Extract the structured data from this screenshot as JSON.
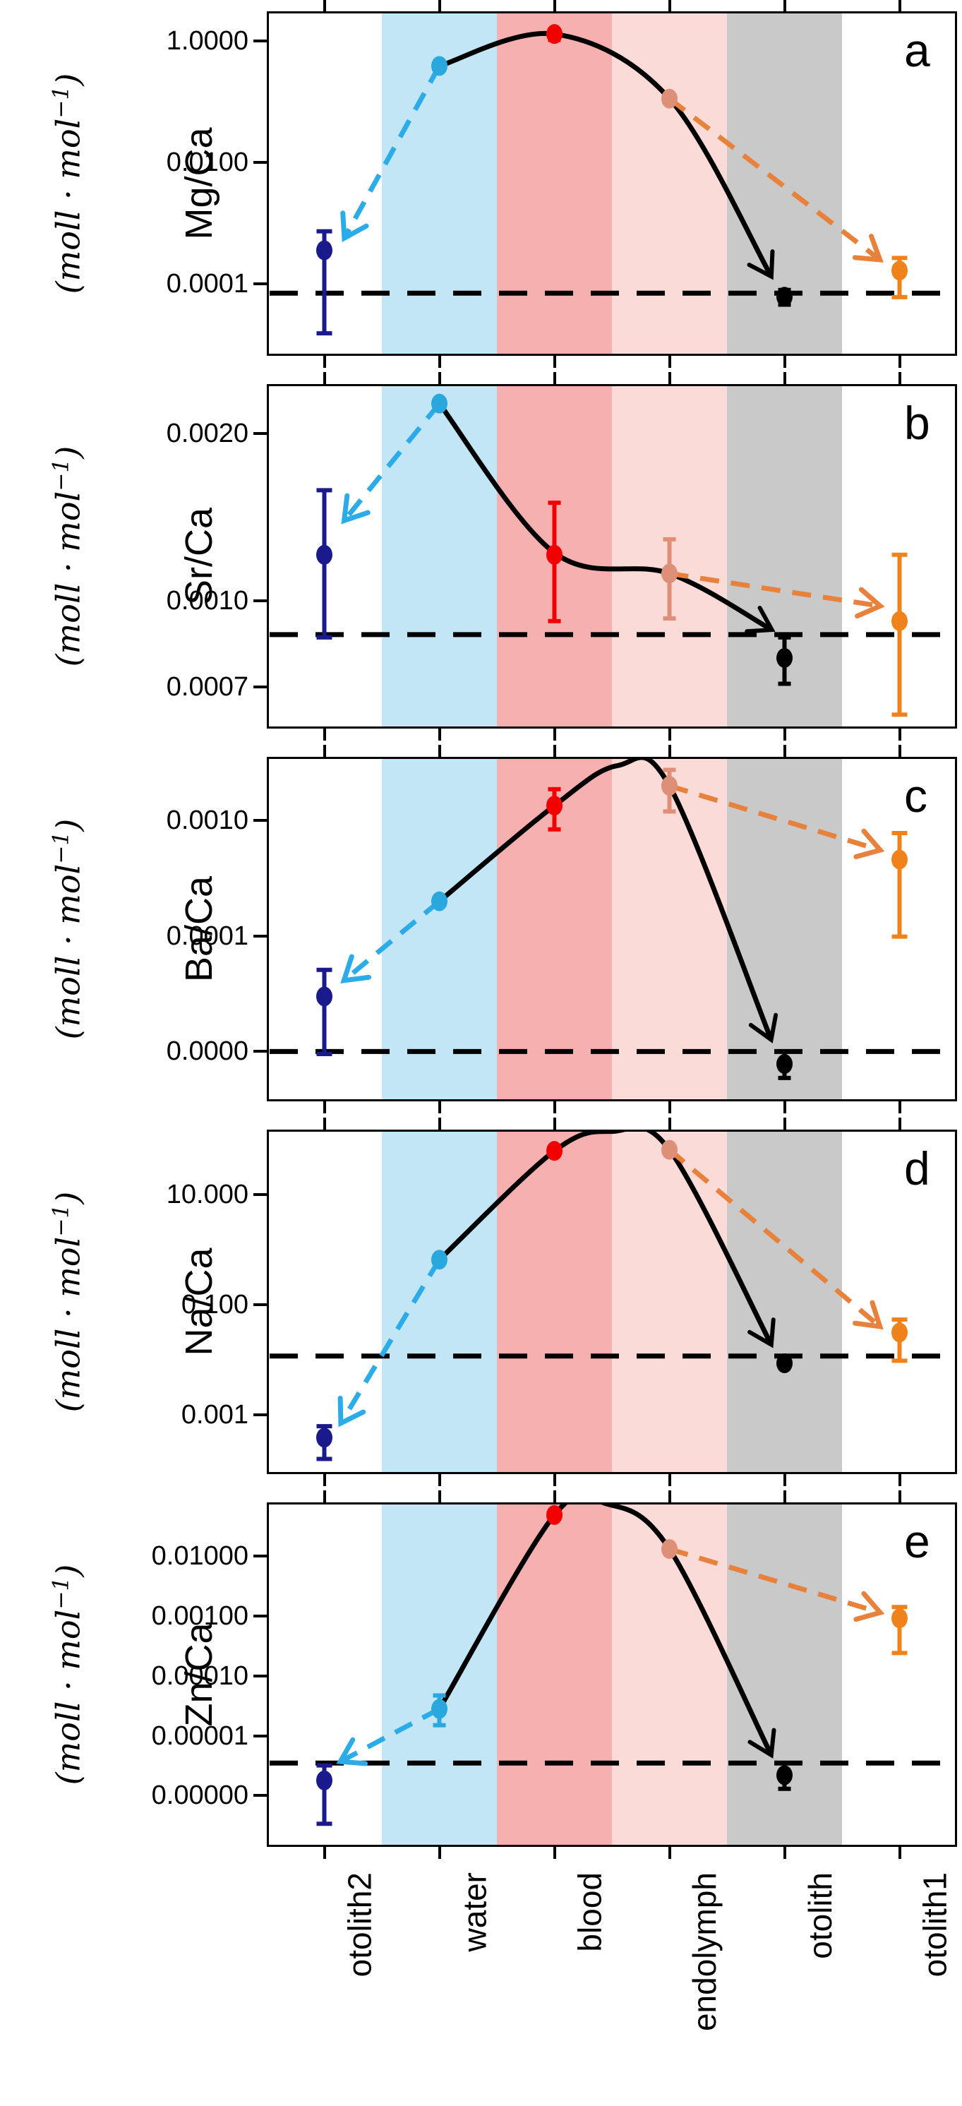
{
  "figure": {
    "units_main": "(moll · mol",
    "units_sup": "−1",
    "units_close": ")"
  },
  "x_categories": [
    "otolith2",
    "water",
    "blood",
    "endolymph",
    "otolith",
    "otolith1"
  ],
  "colors": {
    "band_water": "#c3e6f7",
    "band_blood": "#f7b0b0",
    "band_endolymph": "#fbdbd8",
    "band_otolith": "#c9c9c9",
    "point_otolith2": "#1a1a8c",
    "point_water": "#2aa7dd",
    "point_blood": "#f20000",
    "point_endolymph": "#dd8f77",
    "point_otolith": "#000000",
    "point_otolith1": "#f0821c",
    "arrow_water": "#2bace8",
    "arrow_endolymph": "#e8813c",
    "curve": "#000000",
    "dashed_line": "#000000",
    "axis": "#000000"
  },
  "chart_data": [
    {
      "type": "scatter",
      "panel_label": "a",
      "ylabel": "Mg/Ca",
      "yscale": "log",
      "ytop": 3.1,
      "ybottom": 6.6e-06,
      "yticks": [
        {
          "value": 1.0,
          "label": "1.0000"
        },
        {
          "value": 0.01,
          "label": "0.0100"
        },
        {
          "value": 0.0001,
          "label": "0.0001"
        }
      ],
      "dashed_reference": 7.1e-05,
      "points": [
        {
          "cat": "otolith2",
          "value": 0.00036,
          "lo": 1.55e-05,
          "hi": 0.00074
        },
        {
          "cat": "water",
          "value": 0.39,
          "lo": null,
          "hi": null
        },
        {
          "cat": "blood",
          "value": 1.31,
          "lo": 1.05,
          "hi": 1.5
        },
        {
          "cat": "endolymph",
          "value": 0.113,
          "lo": null,
          "hi": null
        },
        {
          "cat": "otolith",
          "value": 6.2e-05,
          "lo": 4.6e-05,
          "hi": 8e-05
        },
        {
          "cat": "otolith1",
          "value": 0.000167,
          "lo": 6.1e-05,
          "hi": 0.00027
        }
      ],
      "curve": [
        [
          1,
          0.39
        ],
        [
          2,
          1.31
        ],
        [
          3,
          0.113
        ],
        [
          3.88,
          0.00014
        ]
      ],
      "arrow_cyan": {
        "from": [
          1,
          0.39
        ],
        "to": [
          0.18,
          0.0006
        ]
      },
      "arrow_orange": {
        "from": [
          3,
          0.113
        ],
        "to": [
          4.82,
          0.00026
        ]
      }
    },
    {
      "type": "scatter",
      "panel_label": "b",
      "ylabel": "Sr/Ca",
      "yscale": "log",
      "ytop": 0.00245,
      "ybottom": 0.00059,
      "yticks": [
        {
          "value": 0.002,
          "label": "0.0020"
        },
        {
          "value": 0.001,
          "label": "0.0010"
        },
        {
          "value": 0.0007,
          "label": "0.0007"
        }
      ],
      "dashed_reference": 0.00087,
      "points": [
        {
          "cat": "otolith2",
          "value": 0.00121,
          "lo": 0.00086,
          "hi": 0.00158
        },
        {
          "cat": "water",
          "value": 0.00226,
          "lo": null,
          "hi": null
        },
        {
          "cat": "blood",
          "value": 0.00121,
          "lo": 0.00092,
          "hi": 0.0015
        },
        {
          "cat": "endolymph",
          "value": 0.00112,
          "lo": 0.00093,
          "hi": 0.00129
        },
        {
          "cat": "otolith",
          "value": 0.00079,
          "lo": 0.00071,
          "hi": 0.00086
        },
        {
          "cat": "otolith1",
          "value": 0.00092,
          "lo": 0.000625,
          "hi": 0.00121
        }
      ],
      "curve": [
        [
          1,
          0.00226
        ],
        [
          2,
          0.00122
        ],
        [
          3,
          0.00112
        ],
        [
          3.88,
          0.00089
        ]
      ],
      "arrow_cyan": {
        "from": [
          1,
          0.00226
        ],
        "to": [
          0.18,
          0.0014
        ]
      },
      "arrow_orange": {
        "from": [
          3,
          0.00112
        ],
        "to": [
          4.82,
          0.00098
        ]
      }
    },
    {
      "type": "scatter",
      "panel_label": "c",
      "ylabel": "Ba/Ca",
      "yscale": "log",
      "ytop": 0.00357,
      "ybottom": 3.7e-06,
      "yticks": [
        {
          "value": 0.001,
          "label": "0.0010"
        },
        {
          "value": 0.0001,
          "label": "0.0001"
        },
        {
          "value": 1e-05,
          "label": "0.0000"
        }
      ],
      "dashed_reference": 1e-05,
      "points": [
        {
          "cat": "otolith2",
          "value": 3e-05,
          "lo": 9.5e-06,
          "hi": 5.1e-05
        },
        {
          "cat": "water",
          "value": 0.0002,
          "lo": null,
          "hi": null
        },
        {
          "cat": "blood",
          "value": 0.00135,
          "lo": 0.00084,
          "hi": 0.00187
        },
        {
          "cat": "endolymph",
          "value": 0.002,
          "lo": 0.0012,
          "hi": 0.00275
        },
        {
          "cat": "otolith",
          "value": 7.8e-06,
          "lo": 5.9e-06,
          "hi": 1e-05
        },
        {
          "cat": "otolith1",
          "value": 0.00046,
          "lo": 9.9e-05,
          "hi": 0.00078
        }
      ],
      "curve": [
        [
          1,
          0.0002
        ],
        [
          2,
          0.00135
        ],
        [
          2.55,
          0.003
        ],
        [
          3,
          0.002
        ],
        [
          3.88,
          1.3e-05
        ]
      ],
      "arrow_cyan": {
        "from": [
          1,
          0.0002
        ],
        "to": [
          0.18,
          4.2e-05
        ]
      },
      "arrow_orange": {
        "from": [
          3,
          0.002
        ],
        "to": [
          4.82,
          0.00056
        ]
      }
    },
    {
      "type": "scatter",
      "panel_label": "d",
      "ylabel": "Na/Ca",
      "yscale": "log",
      "ytop": 151,
      "ybottom": 8.5e-05,
      "yticks": [
        {
          "value": 10,
          "label": "10.000"
        },
        {
          "value": 0.1,
          "label": "0.100"
        },
        {
          "value": 0.001,
          "label": "0.001"
        }
      ],
      "dashed_reference": 0.0118,
      "points": [
        {
          "cat": "otolith2",
          "value": 0.00039,
          "lo": 0.00016,
          "hi": 0.00063
        },
        {
          "cat": "water",
          "value": 0.66,
          "lo": null,
          "hi": null
        },
        {
          "cat": "blood",
          "value": 62,
          "lo": null,
          "hi": null
        },
        {
          "cat": "endolymph",
          "value": 65,
          "lo": null,
          "hi": null
        },
        {
          "cat": "otolith",
          "value": 0.0087,
          "lo": null,
          "hi": null
        },
        {
          "cat": "otolith1",
          "value": 0.0315,
          "lo": 0.0097,
          "hi": 0.054
        }
      ],
      "curve": [
        [
          1,
          0.66
        ],
        [
          2,
          62
        ],
        [
          2.5,
          140
        ],
        [
          3,
          65
        ],
        [
          3.88,
          0.02
        ]
      ],
      "arrow_cyan": {
        "from": [
          1,
          0.66
        ],
        "to": [
          0.15,
          0.00075
        ]
      },
      "arrow_orange": {
        "from": [
          3,
          65
        ],
        "to": [
          4.82,
          0.042
        ]
      }
    },
    {
      "type": "scatter",
      "panel_label": "e",
      "ylabel": "Zn/Ca",
      "yscale": "log",
      "ytop": 0.078,
      "ybottom": 1.4e-07,
      "yticks": [
        {
          "value": 0.01,
          "label": "0.01000"
        },
        {
          "value": 0.001,
          "label": "0.00100"
        },
        {
          "value": 0.0001,
          "label": "0.00010"
        },
        {
          "value": 1e-05,
          "label": "0.00001"
        },
        {
          "value": 1e-06,
          "label": "0.00000"
        }
      ],
      "dashed_reference": 3.5e-06,
      "points": [
        {
          "cat": "otolith2",
          "value": 1.8e-06,
          "lo": 3.4e-07,
          "hi": 3.2e-06
        },
        {
          "cat": "water",
          "value": 2.8e-05,
          "lo": 1.5e-05,
          "hi": 4.7e-05
        },
        {
          "cat": "blood",
          "value": 0.048,
          "lo": null,
          "hi": null
        },
        {
          "cat": "endolymph",
          "value": 0.013,
          "lo": null,
          "hi": null
        },
        {
          "cat": "otolith",
          "value": 2.2e-06,
          "lo": 1.3e-06,
          "hi": 3.5e-06
        },
        {
          "cat": "otolith1",
          "value": 0.00091,
          "lo": 0.00024,
          "hi": 0.0014
        }
      ],
      "curve": [
        [
          1,
          2.8e-05
        ],
        [
          2,
          0.048
        ],
        [
          2.45,
          0.074
        ],
        [
          3,
          0.013
        ],
        [
          3.88,
          5e-06
        ]
      ],
      "arrow_cyan": {
        "from": [
          1,
          2.8e-05
        ],
        "to": [
          0.15,
          3.8e-06
        ]
      },
      "arrow_orange": {
        "from": [
          3,
          0.013
        ],
        "to": [
          4.82,
          0.00115
        ]
      }
    }
  ]
}
